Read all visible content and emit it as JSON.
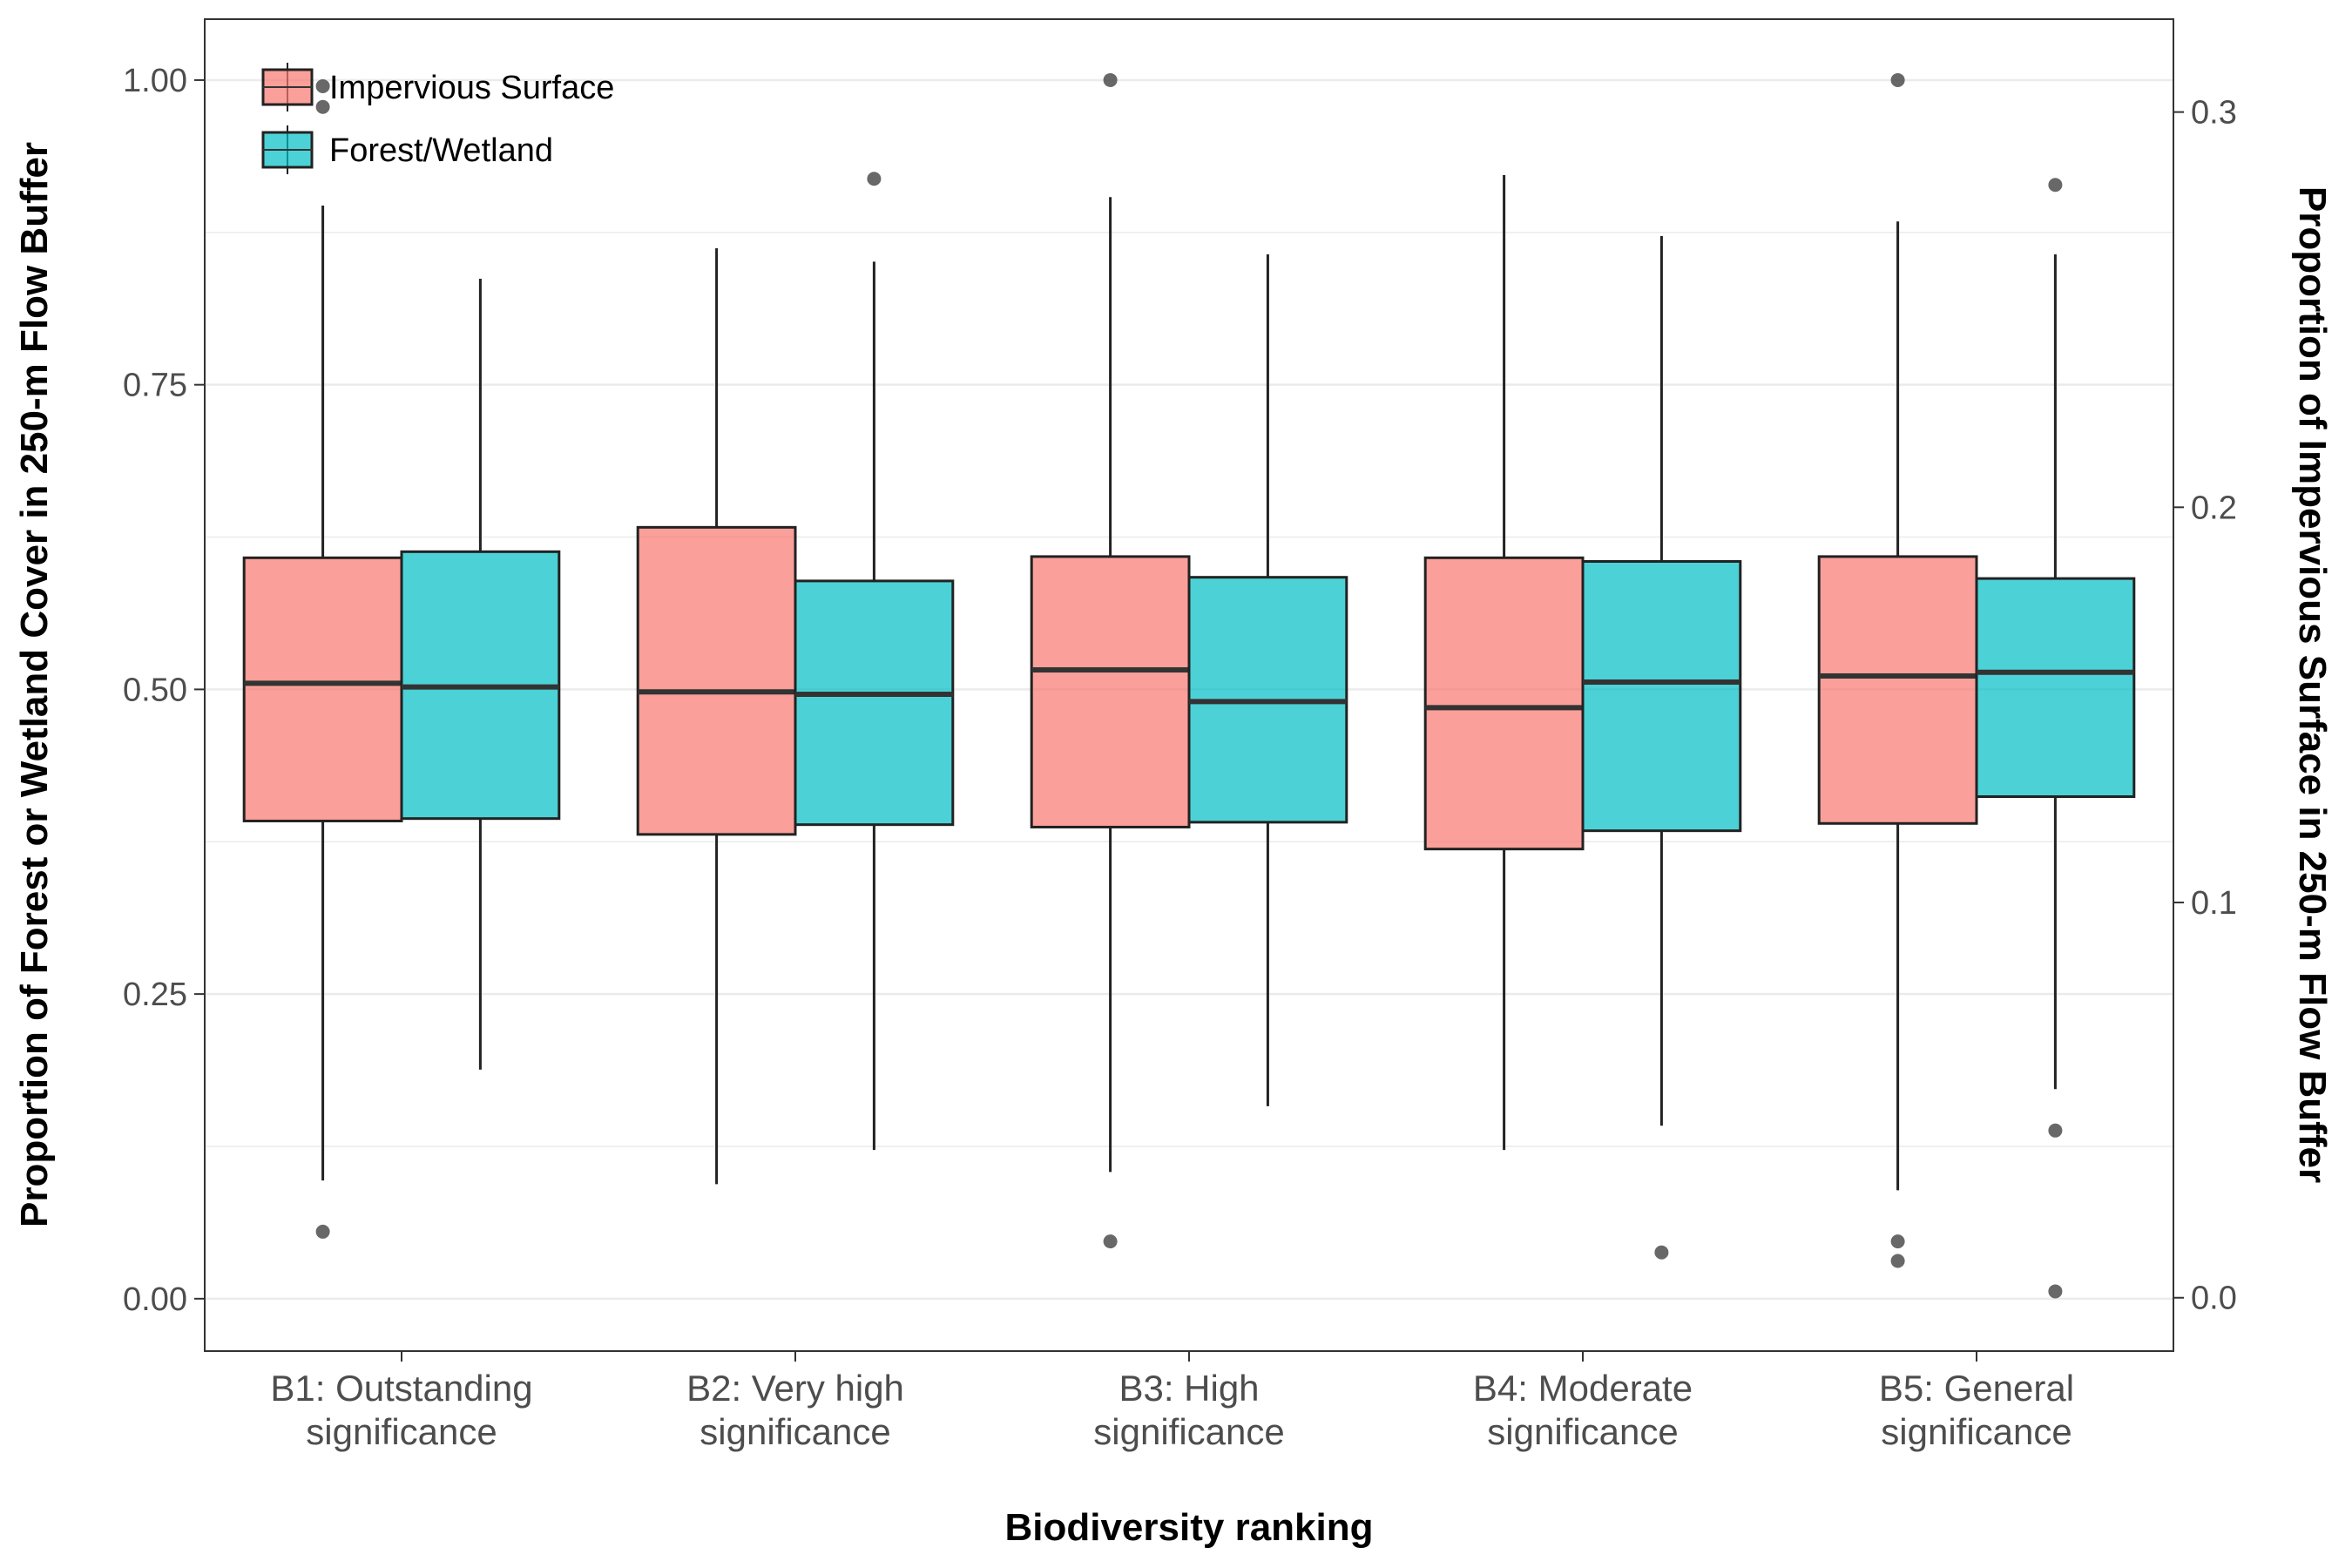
{
  "chart_data": {
    "type": "box",
    "xlabel": "Biodiversity ranking",
    "ylabel": "Proportion of Forest or Wetland Cover in 250-m Flow Buffer",
    "y2label": "Proportion of Impervious Surface in 250-m Flow Buffer",
    "ylim": [
      -0.043,
      1.05
    ],
    "y_ticks": [
      0.0,
      0.25,
      0.5,
      0.75,
      1.0
    ],
    "y_tick_labels": [
      "0.00",
      "0.25",
      "0.50",
      "0.75",
      "1.00"
    ],
    "y2lim": [
      -0.0135,
      0.3235
    ],
    "y2_ticks": [
      0.0,
      0.1,
      0.2,
      0.3
    ],
    "y2_tick_labels": [
      "0.0",
      "0.1",
      "0.2",
      "0.3"
    ],
    "grid": true,
    "legend_position": "top-left",
    "categories": [
      [
        "B1: Outstanding",
        "significance"
      ],
      [
        "B2: Very high",
        "significance"
      ],
      [
        "B3: High",
        "significance"
      ],
      [
        "B4: Moderate",
        "significance"
      ],
      [
        "B5: General",
        "significance"
      ]
    ],
    "series": [
      {
        "name": "Impervious Surface",
        "color": "#F8766D",
        "axis": "left-scale",
        "boxes": [
          {
            "whisker_low": 0.097,
            "q1": 0.392,
            "median": 0.505,
            "q3": 0.608,
            "whisker_high": 0.897,
            "outliers": [
              0.055,
              0.978,
              0.995
            ]
          },
          {
            "whisker_low": 0.094,
            "q1": 0.381,
            "median": 0.498,
            "q3": 0.633,
            "whisker_high": 0.862,
            "outliers": []
          },
          {
            "whisker_low": 0.104,
            "q1": 0.387,
            "median": 0.516,
            "q3": 0.609,
            "whisker_high": 0.904,
            "outliers": [
              0.047,
              1.0
            ]
          },
          {
            "whisker_low": 0.122,
            "q1": 0.369,
            "median": 0.485,
            "q3": 0.608,
            "whisker_high": 0.922,
            "outliers": []
          },
          {
            "whisker_low": 0.089,
            "q1": 0.39,
            "median": 0.511,
            "q3": 0.609,
            "whisker_high": 0.884,
            "outliers": [
              0.031,
              0.047,
              1.0
            ]
          }
        ]
      },
      {
        "name": "Forest/Wetland",
        "color": "#00BFC4",
        "axis": "left-scale",
        "boxes": [
          {
            "whisker_low": 0.188,
            "q1": 0.394,
            "median": 0.502,
            "q3": 0.613,
            "whisker_high": 0.837,
            "outliers": []
          },
          {
            "whisker_low": 0.122,
            "q1": 0.389,
            "median": 0.496,
            "q3": 0.589,
            "whisker_high": 0.851,
            "outliers": [
              0.919
            ]
          },
          {
            "whisker_low": 0.158,
            "q1": 0.391,
            "median": 0.49,
            "q3": 0.592,
            "whisker_high": 0.857,
            "outliers": []
          },
          {
            "whisker_low": 0.142,
            "q1": 0.384,
            "median": 0.506,
            "q3": 0.605,
            "whisker_high": 0.872,
            "outliers": [
              0.038
            ]
          },
          {
            "whisker_low": 0.172,
            "q1": 0.412,
            "median": 0.514,
            "q3": 0.591,
            "whisker_high": 0.857,
            "outliers": [
              0.006,
              0.138,
              0.914
            ]
          }
        ]
      }
    ]
  }
}
